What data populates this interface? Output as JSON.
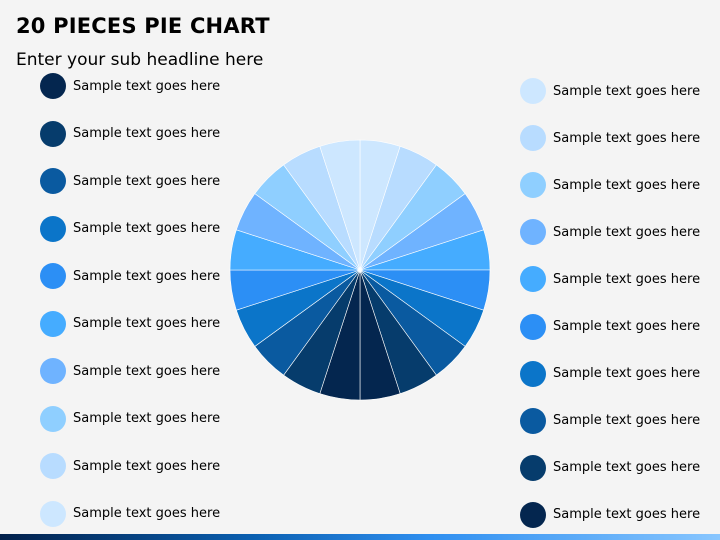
{
  "header": {
    "title": "20 PIECES PIE CHART",
    "subtitle": "Enter your sub headline here"
  },
  "legend_left": [
    {
      "label": "Sample text goes here",
      "color": "#04264f"
    },
    {
      "label": "Sample text goes here",
      "color": "#063c6c"
    },
    {
      "label": "Sample text goes here",
      "color": "#0a5aa0"
    },
    {
      "label": "Sample text goes here",
      "color": "#0b75c9"
    },
    {
      "label": "Sample text goes here",
      "color": "#2c8ff5"
    },
    {
      "label": "Sample text goes here",
      "color": "#45acff"
    },
    {
      "label": "Sample text goes here",
      "color": "#6fb3ff"
    },
    {
      "label": "Sample text goes here",
      "color": "#8fcfff"
    },
    {
      "label": "Sample text goes here",
      "color": "#b8dcff"
    },
    {
      "label": "Sample text goes here",
      "color": "#cde7ff"
    }
  ],
  "legend_right": [
    {
      "label": "Sample text goes here",
      "color": "#cde7ff"
    },
    {
      "label": "Sample text goes here",
      "color": "#b8dcff"
    },
    {
      "label": "Sample text goes here",
      "color": "#8fcfff"
    },
    {
      "label": "Sample text goes here",
      "color": "#6fb3ff"
    },
    {
      "label": "Sample text goes here",
      "color": "#45acff"
    },
    {
      "label": "Sample text goes here",
      "color": "#2c8ff5"
    },
    {
      "label": "Sample text goes here",
      "color": "#0b75c9"
    },
    {
      "label": "Sample text goes here",
      "color": "#0a5aa0"
    },
    {
      "label": "Sample text goes here",
      "color": "#063c6c"
    },
    {
      "label": "Sample text goes here",
      "color": "#04264f"
    }
  ],
  "pie": {
    "pieces": 20,
    "slice_colors": [
      "#cde7ff",
      "#b8dcff",
      "#8fcfff",
      "#6fb3ff",
      "#45acff",
      "#2c8ff5",
      "#0b75c9",
      "#0a5aa0",
      "#063c6c",
      "#04264f",
      "#04264f",
      "#063c6c",
      "#0a5aa0",
      "#0b75c9",
      "#2c8ff5",
      "#45acff",
      "#6fb3ff",
      "#8fcfff",
      "#b8dcff",
      "#cde7ff"
    ]
  }
}
